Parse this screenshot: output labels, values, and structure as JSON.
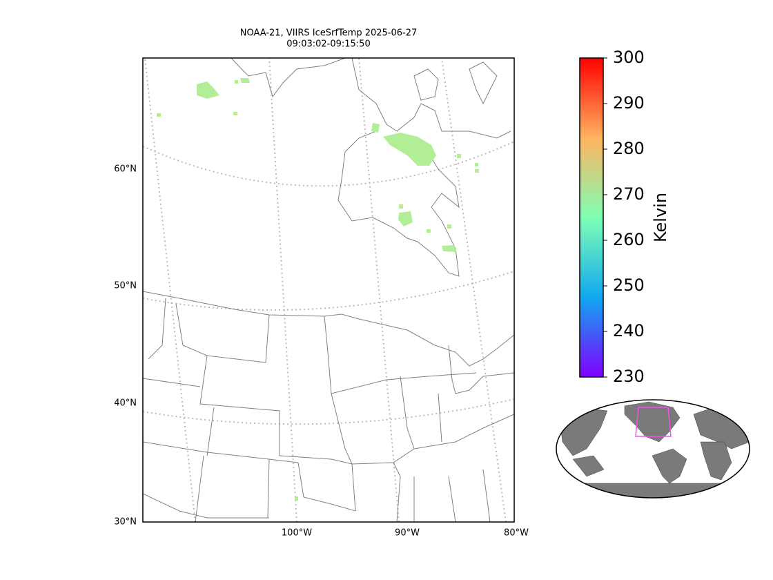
{
  "title": [
    "NOAA-21, VIIRS IceSrfTemp 2025-06-27",
    "09:03:02-09:15:50"
  ],
  "map": {
    "lat_labels": [
      "60°N",
      "50°N",
      "40°N",
      "30°N"
    ],
    "lon_labels": [
      "100°W",
      "90°W",
      "80°W"
    ]
  },
  "colorbar": {
    "label": "Kelvin",
    "lim": [
      230,
      300
    ],
    "ticks": [
      230,
      240,
      250,
      260,
      270,
      280,
      290,
      300
    ]
  }
}
